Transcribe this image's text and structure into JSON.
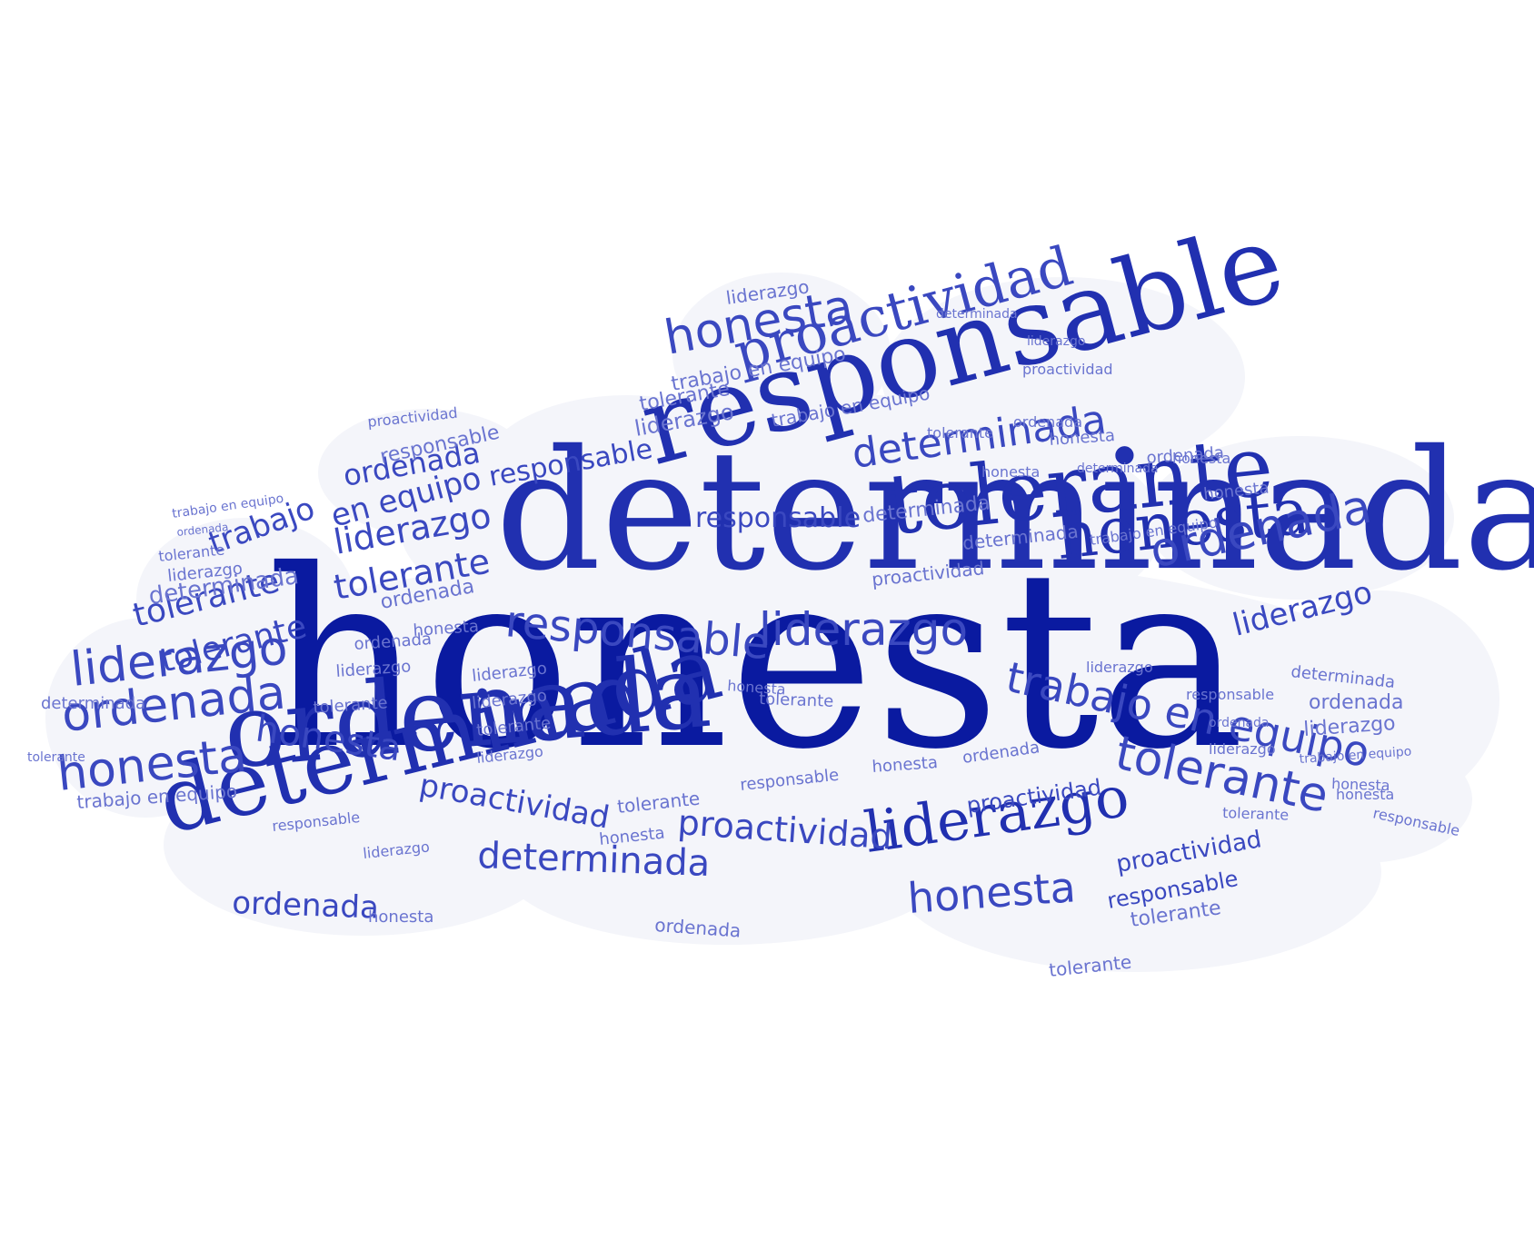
{
  "colors": {
    "background": "#ffffff",
    "cloud": "#f4f5fa",
    "strong": "#0a1aa0",
    "medium": "#2130b0",
    "light": "#3a48c0",
    "faint": "#6a74d0"
  },
  "words": {
    "honesta": "honesta",
    "determinada": "determinada",
    "ordenada": "ordenada",
    "responsable": "responsable",
    "tolerante": "tolerante",
    "liderazgo": "liderazgo",
    "proactividad": "proactividad",
    "trabajo_en_equipo": "trabajo en equipo",
    "trabajo": "trabajo",
    "en_equipo": "en equipo"
  }
}
